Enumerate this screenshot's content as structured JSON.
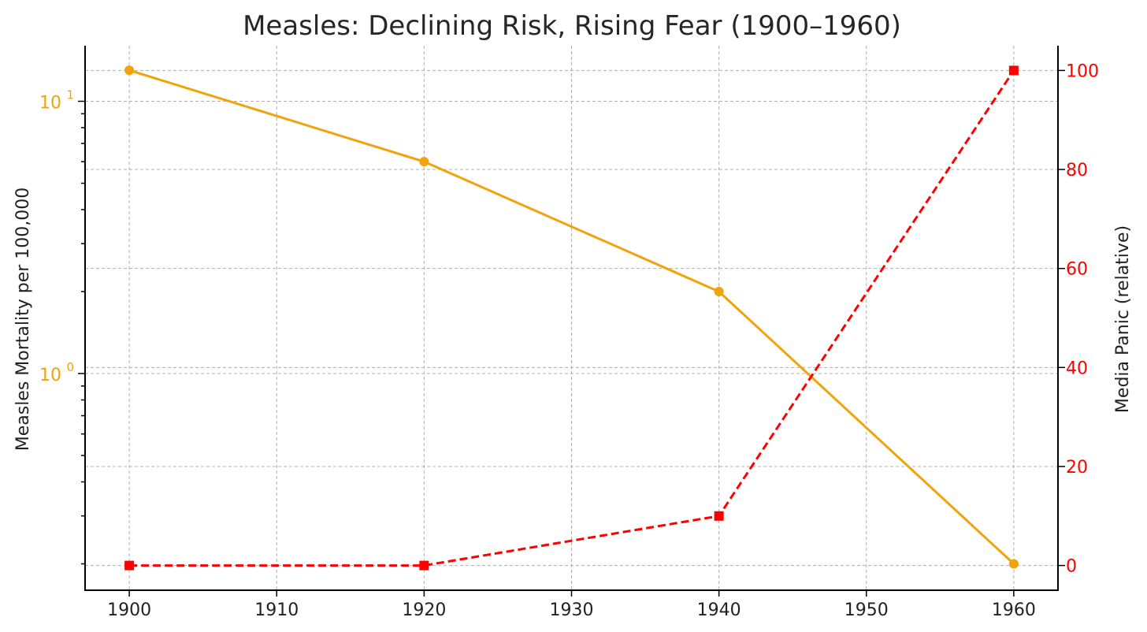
{
  "chart_data": {
    "type": "line",
    "title": "Measles: Declining Risk, Rising Fear (1900–1960)",
    "xlabel": "",
    "x": [
      1900,
      1920,
      1940,
      1960
    ],
    "xticks": [
      "1900",
      "1910",
      "1920",
      "1930",
      "1940",
      "1950",
      "1960"
    ],
    "xlim": [
      1897,
      1963
    ],
    "grid": true,
    "left_axis": {
      "label": "Measles Mortality per 100,000",
      "scale": "log",
      "ylim": [
        0.16,
        16
      ],
      "major_ticks": [
        {
          "value": 1,
          "base": "10",
          "exp": "0"
        },
        {
          "value": 10,
          "base": "10",
          "exp": "1"
        }
      ],
      "color": "#f0a30a"
    },
    "right_axis": {
      "label": "Media Panic (relative)",
      "scale": "linear",
      "ylim": [
        -5,
        105
      ],
      "ticks": [
        "0",
        "20",
        "40",
        "60",
        "80",
        "100"
      ],
      "color": "#ff0000"
    },
    "series": [
      {
        "name": "Measles Mortality",
        "axis": "left",
        "values": [
          13,
          6,
          2,
          0.2
        ],
        "color": "#f0a30a",
        "style": "solid",
        "marker": "circle"
      },
      {
        "name": "Media Panic",
        "axis": "right",
        "values": [
          0,
          0,
          10,
          100
        ],
        "color": "#ff0000",
        "style": "dashed",
        "marker": "square"
      }
    ]
  }
}
